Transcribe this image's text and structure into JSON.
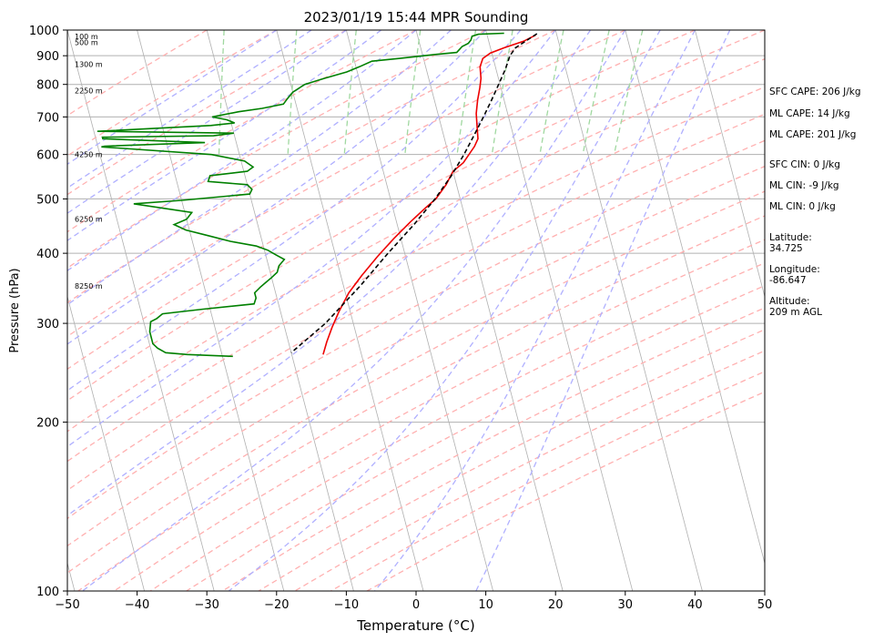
{
  "chart_data": {
    "type": "line",
    "title": "2023/01/19 15:44 MPR Sounding",
    "xlabel": "Temperature (°C)",
    "ylabel": "Pressure (hPa)",
    "xlim": [
      -50,
      50
    ],
    "ylim": [
      1000,
      100
    ],
    "y_scale": "log",
    "x_ticks": [
      -50,
      -40,
      -30,
      -20,
      -10,
      0,
      10,
      20,
      30,
      40,
      50
    ],
    "x_tick_labels": [
      "−50",
      "−40",
      "−30",
      "−20",
      "−10",
      "0",
      "10",
      "20",
      "30",
      "40",
      "50"
    ],
    "y_ticks": [
      1000,
      900,
      800,
      700,
      600,
      500,
      400,
      300,
      200,
      100
    ],
    "y_tick_labels": [
      "1000",
      "900",
      "800",
      "700",
      "600",
      "500",
      "400",
      "300",
      "200",
      "100"
    ],
    "grid": true,
    "series": [
      {
        "kind": "temperature",
        "color": "#ee0000",
        "points": [
          [
            17,
            980
          ],
          [
            15,
            955
          ],
          [
            12,
            930
          ],
          [
            9.8,
            910
          ],
          [
            8.5,
            890
          ],
          [
            7.8,
            860
          ],
          [
            7.5,
            820
          ],
          [
            7,
            790
          ],
          [
            6.2,
            750
          ],
          [
            5.5,
            710
          ],
          [
            5.1,
            670
          ],
          [
            4.8,
            640
          ],
          [
            4,
            620
          ],
          [
            1.8,
            580
          ],
          [
            0,
            560
          ],
          [
            -1.5,
            530
          ],
          [
            -3.5,
            500
          ],
          [
            -5.5,
            480
          ],
          [
            -8,
            455
          ],
          [
            -11,
            425
          ],
          [
            -14,
            395
          ],
          [
            -17,
            365
          ],
          [
            -19.5,
            340
          ],
          [
            -21.6,
            315
          ],
          [
            -23.2,
            295
          ],
          [
            -24.5,
            278
          ],
          [
            -25.5,
            264
          ]
        ]
      },
      {
        "kind": "dewpoint",
        "color": "#008000",
        "points": [
          [
            12.5,
            987
          ],
          [
            8.8,
            983
          ],
          [
            7.8,
            975
          ],
          [
            7.5,
            960
          ],
          [
            7,
            947
          ],
          [
            6,
            935
          ],
          [
            5,
            912
          ],
          [
            2,
            905
          ],
          [
            -3.5,
            890
          ],
          [
            -7.5,
            880
          ],
          [
            -9.5,
            860
          ],
          [
            -11.5,
            842
          ],
          [
            -15,
            820
          ],
          [
            -18,
            800
          ],
          [
            -20,
            775
          ],
          [
            -21,
            755
          ],
          [
            -21.8,
            738
          ],
          [
            -25,
            725
          ],
          [
            -28.5,
            715
          ],
          [
            -32.5,
            700
          ],
          [
            -30.5,
            692
          ],
          [
            -29.5,
            683
          ],
          [
            -33,
            676
          ],
          [
            -49.5,
            660
          ],
          [
            -30,
            655
          ],
          [
            -33,
            648
          ],
          [
            -49,
            644
          ],
          [
            -49,
            640
          ],
          [
            -34.5,
            630
          ],
          [
            -49,
            621
          ],
          [
            -49.5,
            619
          ],
          [
            -34,
            600
          ],
          [
            -29.5,
            584
          ],
          [
            -28.5,
            570
          ],
          [
            -29.5,
            560
          ],
          [
            -35,
            550
          ],
          [
            -35.5,
            537
          ],
          [
            -30,
            530
          ],
          [
            -29.5,
            520
          ],
          [
            -30,
            510
          ],
          [
            -40,
            497
          ],
          [
            -47,
            490
          ],
          [
            -39,
            473
          ],
          [
            -40,
            460
          ],
          [
            -42,
            450
          ],
          [
            -40.5,
            440
          ],
          [
            -37.5,
            430
          ],
          [
            -34.5,
            420
          ],
          [
            -31,
            412
          ],
          [
            -29.5,
            405
          ],
          [
            -28.5,
            397
          ],
          [
            -27.5,
            390
          ],
          [
            -28.5,
            380
          ],
          [
            -29,
            370
          ],
          [
            -30,
            362
          ],
          [
            -31,
            355
          ],
          [
            -32,
            348
          ],
          [
            -33,
            340
          ],
          [
            -33,
            333
          ],
          [
            -33.5,
            325
          ],
          [
            -41,
            318
          ],
          [
            -47,
            312
          ],
          [
            -48,
            306
          ],
          [
            -49,
            302
          ],
          [
            -49.5,
            290
          ],
          [
            -49.5,
            282
          ],
          [
            -49.5,
            276
          ],
          [
            -49,
            271
          ],
          [
            -48,
            266
          ],
          [
            -45,
            264
          ],
          [
            -38.5,
            262
          ]
        ]
      },
      {
        "kind": "parcel",
        "color": "#000000",
        "points": [
          [
            17.2,
            985
          ],
          [
            13.6,
            930
          ],
          [
            12.5,
            900
          ],
          [
            11.3,
            850
          ],
          [
            9.8,
            800
          ],
          [
            8.2,
            750
          ],
          [
            6.4,
            700
          ],
          [
            4.4,
            650
          ],
          [
            2.2,
            600
          ],
          [
            -0.4,
            550
          ],
          [
            -3.6,
            500
          ],
          [
            -7.6,
            450
          ],
          [
            -12.4,
            400
          ],
          [
            -17.6,
            350
          ],
          [
            -24,
            300
          ],
          [
            -30,
            266
          ]
        ]
      }
    ],
    "height_labels": [
      "100 m",
      "500 m",
      "1300 m",
      "2250 m",
      "4250 m",
      "6250 m",
      "8250 m"
    ],
    "height_label_pressures": [
      975,
      950,
      870,
      780,
      600,
      460,
      350
    ]
  },
  "stats": {
    "sfc_cape": "SFC CAPE: 206 J/kg",
    "ml_cape_1": "ML CAPE: 14 J/kg",
    "ml_cape_2": "ML CAPE: 201 J/kg",
    "sfc_cin": "SFC CIN: 0 J/kg",
    "ml_cin_1": "ML CIN: -9 J/kg",
    "ml_cin_2": "ML CIN: 0 J/kg",
    "latitude": "Latitude:\n34.725",
    "longitude": "Longitude:\n-86.647",
    "altitude": "Altitude:\n209 m AGL"
  },
  "colors": {
    "isotherm": "#b0b0b0",
    "isobar": "#b0b0b0",
    "dry_adiabat": "#ffb0b0",
    "moist_adiabat": "#b0b0ff",
    "mixing_ratio": "#a0d8a0",
    "temperature": "#ee0000",
    "dewpoint": "#008000",
    "parcel": "#000000"
  }
}
